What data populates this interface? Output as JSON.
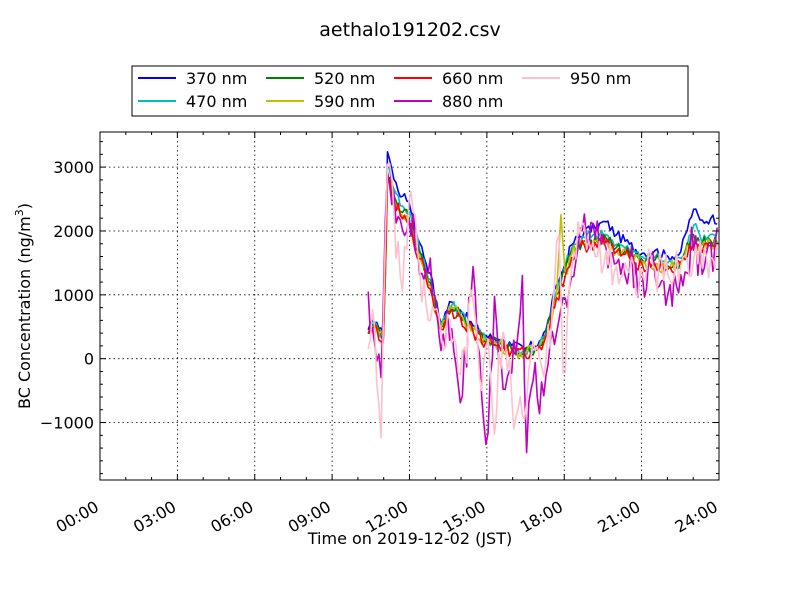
{
  "chart_data": {
    "type": "line",
    "title": "aethalo191202.csv",
    "xlabel": "Time on 2019-12-02 (JST)",
    "ylabel": "BC Concentration (ng/m",
    "ylabel_sup": "3",
    "ylabel_tail": ")",
    "xlim": [
      0,
      24
    ],
    "ylim": [
      -1900,
      3550
    ],
    "x_ticks": [
      0,
      3,
      6,
      9,
      12,
      15,
      18,
      21,
      24
    ],
    "x_tick_labels": [
      "00:00",
      "03:00",
      "06:00",
      "09:00",
      "12:00",
      "15:00",
      "18:00",
      "21:00",
      "24:00"
    ],
    "y_ticks": [
      -1000,
      0,
      1000,
      2000,
      3000
    ],
    "y_tick_labels": [
      "−1000",
      "0",
      "1000",
      "2000",
      "3000"
    ],
    "grid": true,
    "legend_placement": "top, above plot, 4 columns",
    "series": [
      {
        "name": "370 nm",
        "color": "#0000ff",
        "noise": 80,
        "values": [
          [
            10.4,
            450
          ],
          [
            10.7,
            600
          ],
          [
            11.0,
            320
          ],
          [
            11.15,
            3300
          ],
          [
            11.4,
            2800
          ],
          [
            11.7,
            2550
          ],
          [
            12.0,
            2450
          ],
          [
            12.4,
            1800
          ],
          [
            12.8,
            1350
          ],
          [
            13.2,
            550
          ],
          [
            13.6,
            900
          ],
          [
            14.0,
            750
          ],
          [
            14.5,
            500
          ],
          [
            15.0,
            350
          ],
          [
            15.5,
            300
          ],
          [
            16.0,
            200
          ],
          [
            16.5,
            150
          ],
          [
            17.0,
            250
          ],
          [
            17.3,
            450
          ],
          [
            17.7,
            1150
          ],
          [
            18.0,
            1450
          ],
          [
            18.3,
            1800
          ],
          [
            18.8,
            2000
          ],
          [
            19.2,
            2050
          ],
          [
            19.6,
            2150
          ],
          [
            20.0,
            1950
          ],
          [
            20.5,
            1800
          ],
          [
            21.0,
            1650
          ],
          [
            21.5,
            1700
          ],
          [
            22.0,
            1600
          ],
          [
            22.5,
            1650
          ],
          [
            23.0,
            2350
          ],
          [
            23.3,
            2150
          ],
          [
            23.7,
            2200
          ],
          [
            24.0,
            2180
          ]
        ]
      },
      {
        "name": "470 nm",
        "color": "#00bfbf",
        "noise": 90,
        "values": [
          [
            10.4,
            420
          ],
          [
            10.7,
            560
          ],
          [
            11.0,
            280
          ],
          [
            11.15,
            3050
          ],
          [
            11.4,
            2650
          ],
          [
            11.7,
            2400
          ],
          [
            12.0,
            2300
          ],
          [
            12.4,
            1700
          ],
          [
            12.8,
            1250
          ],
          [
            13.2,
            500
          ],
          [
            13.6,
            850
          ],
          [
            14.0,
            700
          ],
          [
            14.5,
            450
          ],
          [
            15.0,
            300
          ],
          [
            15.5,
            250
          ],
          [
            16.0,
            150
          ],
          [
            16.5,
            100
          ],
          [
            17.0,
            200
          ],
          [
            17.3,
            400
          ],
          [
            17.7,
            1050
          ],
          [
            18.0,
            1400
          ],
          [
            18.3,
            1750
          ],
          [
            18.8,
            1900
          ],
          [
            19.2,
            1950
          ],
          [
            19.6,
            1950
          ],
          [
            20.0,
            1800
          ],
          [
            20.5,
            1700
          ],
          [
            21.0,
            1600
          ],
          [
            21.5,
            1600
          ],
          [
            22.0,
            1500
          ],
          [
            22.5,
            1550
          ],
          [
            23.0,
            2100
          ],
          [
            23.3,
            1900
          ],
          [
            23.7,
            1950
          ],
          [
            24.0,
            1950
          ]
        ]
      },
      {
        "name": "520 nm",
        "color": "#008000",
        "noise": 100,
        "values": [
          [
            10.4,
            410
          ],
          [
            10.7,
            540
          ],
          [
            11.0,
            260
          ],
          [
            11.15,
            2950
          ],
          [
            11.4,
            2550
          ],
          [
            11.7,
            2300
          ],
          [
            12.0,
            2200
          ],
          [
            12.4,
            1650
          ],
          [
            12.8,
            1200
          ],
          [
            13.2,
            480
          ],
          [
            13.6,
            820
          ],
          [
            14.0,
            680
          ],
          [
            14.5,
            430
          ],
          [
            15.0,
            280
          ],
          [
            15.5,
            230
          ],
          [
            16.0,
            130
          ],
          [
            16.5,
            90
          ],
          [
            17.0,
            190
          ],
          [
            17.3,
            380
          ],
          [
            17.7,
            1000
          ],
          [
            18.0,
            1350
          ],
          [
            18.3,
            1700
          ],
          [
            18.8,
            1850
          ],
          [
            19.2,
            1900
          ],
          [
            19.6,
            1900
          ],
          [
            20.0,
            1750
          ],
          [
            20.5,
            1650
          ],
          [
            21.0,
            1550
          ],
          [
            21.5,
            1550
          ],
          [
            22.0,
            1450
          ],
          [
            22.5,
            1500
          ],
          [
            23.0,
            1950
          ],
          [
            23.3,
            1800
          ],
          [
            23.7,
            1850
          ],
          [
            24.0,
            1850
          ]
        ]
      },
      {
        "name": "590 nm",
        "color": "#bfbf00",
        "noise": 110,
        "values": [
          [
            10.4,
            400
          ],
          [
            10.7,
            520
          ],
          [
            11.0,
            250
          ],
          [
            11.15,
            2900
          ],
          [
            11.4,
            2500
          ],
          [
            11.7,
            2250
          ],
          [
            12.0,
            2150
          ],
          [
            12.4,
            1600
          ],
          [
            12.8,
            1150
          ],
          [
            13.2,
            460
          ],
          [
            13.6,
            800
          ],
          [
            14.0,
            660
          ],
          [
            14.5,
            420
          ],
          [
            15.0,
            270
          ],
          [
            15.5,
            220
          ],
          [
            16.0,
            120
          ],
          [
            16.5,
            80
          ],
          [
            17.0,
            180
          ],
          [
            17.3,
            370
          ],
          [
            17.7,
            980
          ],
          [
            17.9,
            2480
          ],
          [
            18.0,
            1300
          ],
          [
            18.3,
            1650
          ],
          [
            18.8,
            1800
          ],
          [
            19.2,
            1850
          ],
          [
            19.6,
            1850
          ],
          [
            20.0,
            1700
          ],
          [
            20.5,
            1600
          ],
          [
            21.0,
            1500
          ],
          [
            21.5,
            1500
          ],
          [
            22.0,
            1420
          ],
          [
            22.5,
            1480
          ],
          [
            23.0,
            1850
          ],
          [
            23.3,
            1750
          ],
          [
            23.7,
            1800
          ],
          [
            24.0,
            1800
          ]
        ]
      },
      {
        "name": "660 nm",
        "color": "#ff0000",
        "noise": 120,
        "values": [
          [
            10.4,
            390
          ],
          [
            10.7,
            500
          ],
          [
            11.0,
            240
          ],
          [
            11.15,
            2850
          ],
          [
            11.4,
            2450
          ],
          [
            11.7,
            2200
          ],
          [
            12.0,
            2100
          ],
          [
            12.4,
            1550
          ],
          [
            12.8,
            1100
          ],
          [
            13.2,
            440
          ],
          [
            13.6,
            780
          ],
          [
            14.0,
            640
          ],
          [
            14.5,
            400
          ],
          [
            15.0,
            260
          ],
          [
            15.5,
            210
          ],
          [
            16.0,
            110
          ],
          [
            16.5,
            70
          ],
          [
            17.0,
            170
          ],
          [
            17.3,
            360
          ],
          [
            17.7,
            950
          ],
          [
            18.0,
            1250
          ],
          [
            18.3,
            1600
          ],
          [
            18.8,
            1780
          ],
          [
            19.2,
            1820
          ],
          [
            19.6,
            1820
          ],
          [
            20.0,
            1680
          ],
          [
            20.5,
            1580
          ],
          [
            21.0,
            1480
          ],
          [
            21.5,
            1480
          ],
          [
            22.0,
            1400
          ],
          [
            22.5,
            1460
          ],
          [
            23.0,
            1800
          ],
          [
            23.3,
            1720
          ],
          [
            23.7,
            1780
          ],
          [
            24.0,
            1760
          ]
        ]
      },
      {
        "name": "880 nm",
        "color": "#bf00bf",
        "noise": 420,
        "values": [
          [
            10.4,
            1050
          ],
          [
            10.6,
            350
          ],
          [
            10.9,
            -300
          ],
          [
            11.15,
            2950
          ],
          [
            11.4,
            2600
          ],
          [
            11.7,
            2000
          ],
          [
            12.0,
            2200
          ],
          [
            12.4,
            1300
          ],
          [
            12.8,
            1600
          ],
          [
            13.2,
            100
          ],
          [
            13.6,
            600
          ],
          [
            14.0,
            -800
          ],
          [
            14.5,
            1600
          ],
          [
            14.8,
            -600
          ],
          [
            15.0,
            -1500
          ],
          [
            15.3,
            1000
          ],
          [
            15.6,
            -500
          ],
          [
            16.0,
            -200
          ],
          [
            16.4,
            1400
          ],
          [
            16.5,
            -1650
          ],
          [
            16.8,
            -300
          ],
          [
            17.2,
            -600
          ],
          [
            17.5,
            400
          ],
          [
            17.8,
            600
          ],
          [
            18.0,
            900
          ],
          [
            18.3,
            1300
          ],
          [
            18.8,
            2300
          ],
          [
            19.2,
            1900
          ],
          [
            19.6,
            1750
          ],
          [
            20.0,
            1500
          ],
          [
            20.5,
            1400
          ],
          [
            21.0,
            1350
          ],
          [
            21.5,
            1300
          ],
          [
            22.0,
            1000
          ],
          [
            22.5,
            1300
          ],
          [
            23.0,
            1700
          ],
          [
            23.5,
            1650
          ],
          [
            24.0,
            1750
          ]
        ]
      },
      {
        "name": "950 nm",
        "color": "#ffc0cb",
        "noise": 380,
        "values": [
          [
            10.4,
            150
          ],
          [
            10.6,
            900
          ],
          [
            10.9,
            -1250
          ],
          [
            11.15,
            3100
          ],
          [
            11.4,
            2300
          ],
          [
            11.7,
            900
          ],
          [
            12.0,
            2600
          ],
          [
            12.4,
            1400
          ],
          [
            12.8,
            600
          ],
          [
            13.2,
            400
          ],
          [
            13.6,
            300
          ],
          [
            14.0,
            -300
          ],
          [
            14.5,
            1000
          ],
          [
            14.8,
            -500
          ],
          [
            15.0,
            300
          ],
          [
            15.3,
            -1200
          ],
          [
            15.6,
            500
          ],
          [
            16.0,
            -700
          ],
          [
            16.4,
            -900
          ],
          [
            16.8,
            300
          ],
          [
            17.2,
            -300
          ],
          [
            17.5,
            600
          ],
          [
            17.8,
            2000
          ],
          [
            18.0,
            -450
          ],
          [
            18.3,
            1500
          ],
          [
            18.8,
            2100
          ],
          [
            19.2,
            1600
          ],
          [
            19.6,
            1700
          ],
          [
            20.0,
            1450
          ],
          [
            20.5,
            1350
          ],
          [
            21.0,
            1300
          ],
          [
            21.5,
            1400
          ],
          [
            22.0,
            1300
          ],
          [
            22.5,
            1450
          ],
          [
            23.0,
            1550
          ],
          [
            23.5,
            1600
          ],
          [
            24.0,
            1600
          ]
        ]
      }
    ]
  }
}
